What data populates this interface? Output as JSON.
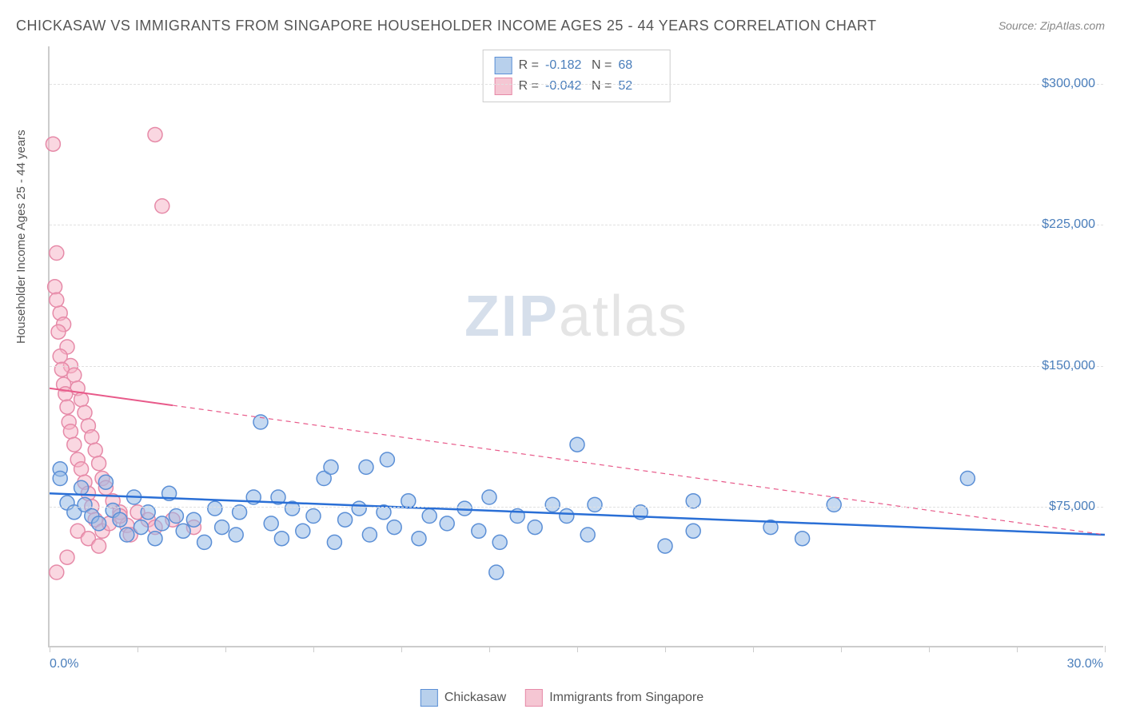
{
  "title": "CHICKASAW VS IMMIGRANTS FROM SINGAPORE HOUSEHOLDER INCOME AGES 25 - 44 YEARS CORRELATION CHART",
  "source": "Source: ZipAtlas.com",
  "ylabel": "Householder Income Ages 25 - 44 years",
  "watermark_a": "ZIP",
  "watermark_b": "atlas",
  "chart": {
    "type": "scatter",
    "xlim": [
      0,
      30
    ],
    "ylim": [
      0,
      320000
    ],
    "x_ticks": [
      0,
      2.5,
      5,
      7.5,
      10,
      12.5,
      15,
      17.5,
      20,
      22.5,
      25,
      27.5,
      30
    ],
    "x_axis_labels": [
      {
        "x": 0,
        "text": "0.0%"
      },
      {
        "x": 30,
        "text": "30.0%"
      }
    ],
    "y_gridlines": [
      75000,
      150000,
      225000,
      300000
    ],
    "y_tick_labels": [
      {
        "y": 75000,
        "text": "$75,000"
      },
      {
        "y": 150000,
        "text": "$150,000"
      },
      {
        "y": 225000,
        "text": "$225,000"
      },
      {
        "y": 300000,
        "text": "$300,000"
      }
    ],
    "background_color": "#ffffff",
    "grid_color": "#e0e0e0",
    "axis_color": "#cccccc",
    "marker_radius": 9,
    "marker_stroke_width": 1.5,
    "title_fontsize": 18,
    "label_fontsize": 15,
    "tick_fontsize": 16,
    "tick_label_color": "#4a7ebb"
  },
  "series": [
    {
      "name": "Chickasaw",
      "label": "Chickasaw",
      "fill_color": "rgba(150, 185, 230, 0.55)",
      "stroke_color": "#5b8fd6",
      "swatch_fill": "#b8d0ec",
      "swatch_border": "#5b8fd6",
      "trend_color": "#2a6fd6",
      "trend_width": 2.5,
      "trend_dash": "none",
      "R": "-0.182",
      "N": "68",
      "trend": {
        "x1": 0,
        "y1": 82000,
        "x2": 30,
        "y2": 60000
      },
      "points": [
        [
          0.3,
          95000
        ],
        [
          0.3,
          90000
        ],
        [
          0.5,
          77000
        ],
        [
          0.7,
          72000
        ],
        [
          0.9,
          85000
        ],
        [
          1.0,
          76000
        ],
        [
          1.2,
          70000
        ],
        [
          1.4,
          66000
        ],
        [
          1.6,
          88000
        ],
        [
          1.8,
          73000
        ],
        [
          2.0,
          68000
        ],
        [
          2.2,
          60000
        ],
        [
          2.4,
          80000
        ],
        [
          2.6,
          64000
        ],
        [
          2.8,
          72000
        ],
        [
          3.0,
          58000
        ],
        [
          3.2,
          66000
        ],
        [
          3.4,
          82000
        ],
        [
          3.6,
          70000
        ],
        [
          3.8,
          62000
        ],
        [
          4.1,
          68000
        ],
        [
          4.4,
          56000
        ],
        [
          4.7,
          74000
        ],
        [
          4.9,
          64000
        ],
        [
          5.3,
          60000
        ],
        [
          5.4,
          72000
        ],
        [
          5.8,
          80000
        ],
        [
          6.0,
          120000
        ],
        [
          6.3,
          66000
        ],
        [
          6.6,
          58000
        ],
        [
          6.9,
          74000
        ],
        [
          7.2,
          62000
        ],
        [
          7.5,
          70000
        ],
        [
          7.8,
          90000
        ],
        [
          8.1,
          56000
        ],
        [
          8.4,
          68000
        ],
        [
          8.8,
          74000
        ],
        [
          9.0,
          96000
        ],
        [
          9.1,
          60000
        ],
        [
          9.5,
          72000
        ],
        [
          9.6,
          100000
        ],
        [
          9.8,
          64000
        ],
        [
          10.2,
          78000
        ],
        [
          10.5,
          58000
        ],
        [
          10.8,
          70000
        ],
        [
          11.3,
          66000
        ],
        [
          11.8,
          74000
        ],
        [
          12.2,
          62000
        ],
        [
          12.5,
          80000
        ],
        [
          12.7,
          40000
        ],
        [
          12.8,
          56000
        ],
        [
          13.3,
          70000
        ],
        [
          13.8,
          64000
        ],
        [
          14.3,
          76000
        ],
        [
          14.7,
          70000
        ],
        [
          15.0,
          108000
        ],
        [
          15.3,
          60000
        ],
        [
          15.5,
          76000
        ],
        [
          16.8,
          72000
        ],
        [
          17.5,
          54000
        ],
        [
          18.3,
          62000
        ],
        [
          18.3,
          78000
        ],
        [
          20.5,
          64000
        ],
        [
          21.4,
          58000
        ],
        [
          22.3,
          76000
        ],
        [
          26.1,
          90000
        ],
        [
          6.5,
          80000
        ],
        [
          8.0,
          96000
        ]
      ]
    },
    {
      "name": "Immigrants from Singapore",
      "label": "Immigrants from Singapore",
      "fill_color": "rgba(245, 175, 195, 0.5)",
      "stroke_color": "#e68aa8",
      "swatch_fill": "#f5c6d3",
      "swatch_border": "#e68aa8",
      "trend_color": "#e85a8a",
      "trend_width": 2,
      "trend_dash": "6,5",
      "R": "-0.042",
      "N": "52",
      "trend": {
        "x1": 0,
        "y1": 138000,
        "x2": 30,
        "y2": 60000,
        "solid_until": 3.5
      },
      "points": [
        [
          0.1,
          268000
        ],
        [
          0.2,
          210000
        ],
        [
          0.15,
          192000
        ],
        [
          0.3,
          178000
        ],
        [
          0.2,
          185000
        ],
        [
          0.4,
          172000
        ],
        [
          0.25,
          168000
        ],
        [
          0.5,
          160000
        ],
        [
          0.3,
          155000
        ],
        [
          0.6,
          150000
        ],
        [
          0.35,
          148000
        ],
        [
          0.7,
          145000
        ],
        [
          0.4,
          140000
        ],
        [
          0.8,
          138000
        ],
        [
          0.45,
          135000
        ],
        [
          0.9,
          132000
        ],
        [
          0.5,
          128000
        ],
        [
          1.0,
          125000
        ],
        [
          0.55,
          120000
        ],
        [
          1.1,
          118000
        ],
        [
          0.6,
          115000
        ],
        [
          1.2,
          112000
        ],
        [
          0.7,
          108000
        ],
        [
          1.3,
          105000
        ],
        [
          0.8,
          100000
        ],
        [
          1.4,
          98000
        ],
        [
          0.9,
          95000
        ],
        [
          1.5,
          90000
        ],
        [
          1.0,
          88000
        ],
        [
          1.6,
          85000
        ],
        [
          1.1,
          82000
        ],
        [
          1.8,
          78000
        ],
        [
          1.2,
          75000
        ],
        [
          2.0,
          72000
        ],
        [
          1.3,
          68000
        ],
        [
          2.2,
          65000
        ],
        [
          1.5,
          62000
        ],
        [
          2.5,
          72000
        ],
        [
          1.7,
          66000
        ],
        [
          2.8,
          68000
        ],
        [
          2.0,
          70000
        ],
        [
          3.0,
          64000
        ],
        [
          0.2,
          40000
        ],
        [
          0.5,
          48000
        ],
        [
          3.0,
          273000
        ],
        [
          3.2,
          235000
        ],
        [
          0.8,
          62000
        ],
        [
          1.1,
          58000
        ],
        [
          1.4,
          54000
        ],
        [
          2.3,
          60000
        ],
        [
          4.1,
          64000
        ],
        [
          3.5,
          68000
        ]
      ]
    }
  ],
  "legend_top": {
    "R_label": "R =",
    "N_label": "N ="
  },
  "legend_bottom": {}
}
